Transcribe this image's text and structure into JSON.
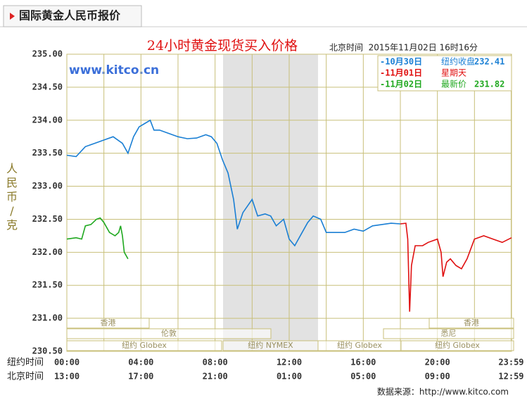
{
  "header": {
    "tab": "国际黄金人民币报价"
  },
  "chart_data": {
    "type": "line",
    "title": "24小时黄金现货买入价格",
    "subtitle": "北京时间  2015年11月02日 16时16分",
    "watermark": "www.kitco.cn",
    "ylabel": "人民币/克",
    "source": "数据来源：http://www.kitco.com",
    "xlim": [
      0,
      24
    ],
    "ylim": [
      230.5,
      235
    ],
    "yticks": [
      {
        "value": 230.5,
        "label": "230.50"
      },
      {
        "value": 231,
        "label": "231.00"
      },
      {
        "value": 231.5,
        "label": "231.50"
      },
      {
        "value": 232,
        "label": "232.00"
      },
      {
        "value": 232.5,
        "label": "232.50"
      },
      {
        "value": 233,
        "label": "233.00"
      },
      {
        "value": 233.5,
        "label": "233.50"
      },
      {
        "value": 234,
        "label": "234.00"
      },
      {
        "value": 234.5,
        "label": "234.50"
      },
      {
        "value": 235,
        "label": "235.00"
      }
    ],
    "xticks": [
      {
        "value": 0,
        "label": "00:00"
      },
      {
        "value": 4,
        "label": "04:00"
      },
      {
        "value": 8,
        "label": "08:00"
      },
      {
        "value": 12,
        "label": "12:00"
      },
      {
        "value": 16,
        "label": "16:00"
      },
      {
        "value": 20,
        "label": "20:00"
      },
      {
        "value": 23.98,
        "label": "23:59"
      }
    ],
    "xtick_row_label": "纽约时间",
    "xticks_beijing": [
      "13:00",
      "17:00",
      "21:00",
      "01:00",
      "05:00",
      "09:00",
      "12:59"
    ],
    "xticks_beijing_row_label": "北京时间",
    "xgrid": [
      2,
      6,
      10,
      14,
      18,
      22
    ],
    "grid": true,
    "sessions": [
      "香港",
      "伦敦",
      "纽约 Globex",
      "纽约 NYMEX",
      "纽约 Globex",
      "香港",
      "悉尼",
      "纽约 Globex"
    ],
    "series": [
      {
        "name": "-10月30日",
        "label": "纽约收盘",
        "price": 232.41,
        "color": "#1a7fd4",
        "x": [
          0,
          0.5,
          1,
          1.5,
          2,
          2.5,
          3,
          3.3,
          3.6,
          3.9,
          4.2,
          4.5,
          4.7,
          5,
          5.5,
          6,
          6.5,
          7,
          7.5,
          7.8,
          8.1,
          8.4,
          8.7,
          9,
          9.2,
          9.5,
          10,
          10.3,
          10.7,
          11,
          11.3,
          11.7,
          12,
          12.3,
          12.7,
          13,
          13.3,
          13.7,
          14,
          14.5,
          15,
          15.5,
          16,
          16.5,
          17,
          17.5,
          18
        ],
        "values": [
          233.47,
          233.45,
          233.6,
          233.65,
          233.7,
          233.75,
          233.65,
          233.5,
          233.75,
          233.9,
          233.95,
          234.0,
          233.85,
          233.85,
          233.8,
          233.75,
          233.72,
          233.73,
          233.78,
          233.75,
          233.65,
          233.4,
          233.2,
          232.8,
          232.35,
          232.6,
          232.8,
          232.55,
          232.58,
          232.55,
          232.4,
          232.5,
          232.2,
          232.1,
          232.3,
          232.45,
          232.55,
          232.5,
          232.3,
          232.3,
          232.3,
          232.35,
          232.32,
          232.4,
          232.42,
          232.44,
          232.43
        ]
      },
      {
        "name": "-11月01日",
        "label": "星期天",
        "color": "#e01010",
        "x": [
          18,
          18.3,
          18.4,
          18.5,
          18.6,
          18.8,
          19.2,
          19.5,
          20,
          20.2,
          20.3,
          20.5,
          20.7,
          21,
          21.3,
          21.6,
          22,
          22.5,
          23,
          23.5,
          24
        ],
        "values": [
          232.43,
          232.44,
          232.2,
          231.1,
          231.8,
          232.1,
          232.1,
          232.15,
          232.2,
          232.0,
          231.63,
          231.85,
          231.9,
          231.8,
          231.75,
          231.9,
          232.2,
          232.25,
          232.2,
          232.15,
          232.22
        ]
      },
      {
        "name": "-11月02日",
        "label": "最新价",
        "price": 231.82,
        "color": "#1fa81f",
        "x": [
          0,
          0.5,
          0.8,
          1,
          1.3,
          1.6,
          1.8,
          2,
          2.3,
          2.6,
          2.8,
          2.9,
          3,
          3.1,
          3.3
        ],
        "values": [
          232.2,
          232.22,
          232.2,
          232.4,
          232.42,
          232.5,
          232.52,
          232.45,
          232.3,
          232.25,
          232.3,
          232.4,
          232.25,
          232.0,
          231.9
        ]
      }
    ]
  }
}
